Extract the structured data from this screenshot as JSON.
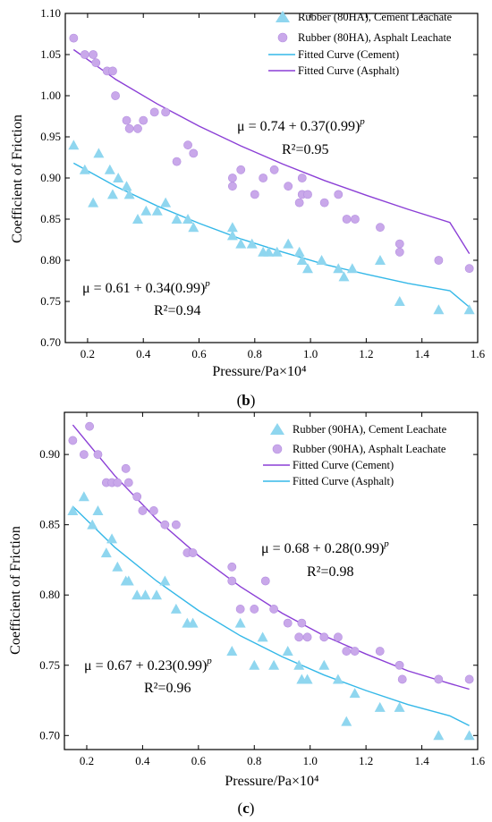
{
  "colors": {
    "cement": "#8fd6ef",
    "asphalt": "#c9a8ea",
    "cement_curve": "#35b8e8",
    "asphalt_curve": "#8b3fd6"
  },
  "panels": [
    {
      "label_pre": "(",
      "label_letter": "b",
      "label_post": ")",
      "equations": [
        {
          "text": "μ = 0.74 + 0.37(0.99)",
          "sup": "p",
          "r2": "R²=0.95"
        },
        {
          "text": "μ = 0.61 + 0.34(0.99)",
          "sup": "p",
          "r2": "R²=0.94"
        }
      ]
    },
    {
      "label_pre": "(",
      "label_letter": "c",
      "label_post": ")",
      "equations": [
        {
          "text": "μ = 0.68 + 0.28(0.99)",
          "sup": "p",
          "r2": "R²=0.98"
        },
        {
          "text": "μ = 0.67 + 0.23(0.99)",
          "sup": "p",
          "r2": "R²=0.96"
        }
      ]
    }
  ],
  "chart_data": [
    {
      "type": "scatter",
      "xlabel": "Pressure/Pa×10⁴",
      "ylabel": "Coefficient of Friction",
      "xlim": [
        0.12,
        1.6
      ],
      "ylim": [
        0.7,
        1.1
      ],
      "xticks": [
        "0.2",
        "0.4",
        "0.6",
        "0.8",
        "1.0",
        "1.2",
        "1.4",
        "1.6"
      ],
      "yticks": [
        "0.70",
        "0.75",
        "0.80",
        "0.85",
        "0.90",
        "0.95",
        "1.00",
        "1.05",
        "1.10"
      ],
      "legend_position": "top-right",
      "series": [
        {
          "name": "Rubber (80HA), Cement Leachate",
          "marker": "triangle",
          "points": [
            [
              0.15,
              0.94
            ],
            [
              0.19,
              0.91
            ],
            [
              0.22,
              0.87
            ],
            [
              0.24,
              0.93
            ],
            [
              0.28,
              0.91
            ],
            [
              0.29,
              0.88
            ],
            [
              0.31,
              0.9
            ],
            [
              0.34,
              0.89
            ],
            [
              0.35,
              0.88
            ],
            [
              0.38,
              0.85
            ],
            [
              0.41,
              0.86
            ],
            [
              0.45,
              0.86
            ],
            [
              0.48,
              0.87
            ],
            [
              0.52,
              0.85
            ],
            [
              0.56,
              0.85
            ],
            [
              0.58,
              0.84
            ],
            [
              0.72,
              0.84
            ],
            [
              0.72,
              0.83
            ],
            [
              0.75,
              0.82
            ],
            [
              0.79,
              0.82
            ],
            [
              0.83,
              0.81
            ],
            [
              0.85,
              0.81
            ],
            [
              0.88,
              0.81
            ],
            [
              0.92,
              0.82
            ],
            [
              0.96,
              0.81
            ],
            [
              0.97,
              0.8
            ],
            [
              0.99,
              0.79
            ],
            [
              1.04,
              0.8
            ],
            [
              1.1,
              0.79
            ],
            [
              1.12,
              0.78
            ],
            [
              1.15,
              0.79
            ],
            [
              1.25,
              0.8
            ],
            [
              1.32,
              0.75
            ],
            [
              1.46,
              0.74
            ],
            [
              1.57,
              0.74
            ]
          ]
        },
        {
          "name": "Rubber (80HA), Asphalt Leachate",
          "marker": "circle",
          "points": [
            [
              0.15,
              1.07
            ],
            [
              0.19,
              1.05
            ],
            [
              0.22,
              1.05
            ],
            [
              0.23,
              1.04
            ],
            [
              0.27,
              1.03
            ],
            [
              0.29,
              1.03
            ],
            [
              0.3,
              1.0
            ],
            [
              0.34,
              0.97
            ],
            [
              0.35,
              0.96
            ],
            [
              0.38,
              0.96
            ],
            [
              0.4,
              0.97
            ],
            [
              0.44,
              0.98
            ],
            [
              0.48,
              0.98
            ],
            [
              0.52,
              0.92
            ],
            [
              0.56,
              0.94
            ],
            [
              0.58,
              0.93
            ],
            [
              0.72,
              0.89
            ],
            [
              0.72,
              0.9
            ],
            [
              0.75,
              0.91
            ],
            [
              0.8,
              0.88
            ],
            [
              0.83,
              0.9
            ],
            [
              0.87,
              0.91
            ],
            [
              0.92,
              0.89
            ],
            [
              0.96,
              0.87
            ],
            [
              0.97,
              0.88
            ],
            [
              0.97,
              0.9
            ],
            [
              0.99,
              0.88
            ],
            [
              1.05,
              0.87
            ],
            [
              1.1,
              0.88
            ],
            [
              1.13,
              0.85
            ],
            [
              1.16,
              0.85
            ],
            [
              1.25,
              0.84
            ],
            [
              1.32,
              0.82
            ],
            [
              1.32,
              0.81
            ],
            [
              1.46,
              0.8
            ],
            [
              1.57,
              0.79
            ]
          ]
        },
        {
          "name": "Fitted Curve (Cement)",
          "type": "line",
          "x": [
            0.15,
            0.3,
            0.45,
            0.6,
            0.75,
            0.9,
            1.05,
            1.2,
            1.35,
            1.5,
            1.57
          ],
          "y": [
            0.918,
            0.89,
            0.866,
            0.845,
            0.826,
            0.81,
            0.795,
            0.783,
            0.772,
            0.763,
            0.743
          ]
        },
        {
          "name": "Fitted Curve (Asphalt)",
          "type": "line",
          "x": [
            0.15,
            0.3,
            0.45,
            0.6,
            0.75,
            0.9,
            1.05,
            1.2,
            1.35,
            1.5,
            1.57
          ],
          "y": [
            1.056,
            1.02,
            0.99,
            0.963,
            0.939,
            0.917,
            0.897,
            0.879,
            0.862,
            0.846,
            0.808
          ]
        }
      ]
    },
    {
      "type": "scatter",
      "xlabel": "Pressure/Pa×10⁴",
      "ylabel": "Coefficient of Friction",
      "xlim": [
        0.12,
        1.6
      ],
      "ylim": [
        0.69,
        0.93
      ],
      "xticks": [
        "0.2",
        "0.4",
        "0.6",
        "0.8",
        "1.0",
        "1.2",
        "1.4",
        "1.6"
      ],
      "yticks": [
        "0.70",
        "0.75",
        "0.80",
        "0.85",
        "0.90"
      ],
      "legend_position": "top-right",
      "series": [
        {
          "name": "Rubber (90HA), Cement Leachate",
          "marker": "triangle",
          "points": [
            [
              0.15,
              0.86
            ],
            [
              0.19,
              0.87
            ],
            [
              0.22,
              0.85
            ],
            [
              0.24,
              0.86
            ],
            [
              0.27,
              0.83
            ],
            [
              0.29,
              0.84
            ],
            [
              0.31,
              0.82
            ],
            [
              0.34,
              0.81
            ],
            [
              0.35,
              0.81
            ],
            [
              0.38,
              0.8
            ],
            [
              0.41,
              0.8
            ],
            [
              0.45,
              0.8
            ],
            [
              0.48,
              0.81
            ],
            [
              0.52,
              0.79
            ],
            [
              0.56,
              0.78
            ],
            [
              0.58,
              0.78
            ],
            [
              0.72,
              0.76
            ],
            [
              0.75,
              0.78
            ],
            [
              0.8,
              0.75
            ],
            [
              0.83,
              0.77
            ],
            [
              0.87,
              0.75
            ],
            [
              0.92,
              0.76
            ],
            [
              0.96,
              0.75
            ],
            [
              0.97,
              0.74
            ],
            [
              0.99,
              0.74
            ],
            [
              1.05,
              0.75
            ],
            [
              1.1,
              0.74
            ],
            [
              1.13,
              0.71
            ],
            [
              1.16,
              0.73
            ],
            [
              1.25,
              0.72
            ],
            [
              1.32,
              0.72
            ],
            [
              1.46,
              0.7
            ],
            [
              1.57,
              0.7
            ]
          ]
        },
        {
          "name": "Rubber (90HA), Asphalt Leachate",
          "marker": "circle",
          "points": [
            [
              0.15,
              0.91
            ],
            [
              0.19,
              0.9
            ],
            [
              0.21,
              0.92
            ],
            [
              0.24,
              0.9
            ],
            [
              0.27,
              0.88
            ],
            [
              0.29,
              0.88
            ],
            [
              0.31,
              0.88
            ],
            [
              0.34,
              0.89
            ],
            [
              0.35,
              0.88
            ],
            [
              0.38,
              0.87
            ],
            [
              0.4,
              0.86
            ],
            [
              0.44,
              0.86
            ],
            [
              0.48,
              0.85
            ],
            [
              0.52,
              0.85
            ],
            [
              0.56,
              0.83
            ],
            [
              0.58,
              0.83
            ],
            [
              0.72,
              0.82
            ],
            [
              0.72,
              0.81
            ],
            [
              0.75,
              0.79
            ],
            [
              0.8,
              0.79
            ],
            [
              0.84,
              0.81
            ],
            [
              0.87,
              0.79
            ],
            [
              0.92,
              0.78
            ],
            [
              0.96,
              0.77
            ],
            [
              0.97,
              0.78
            ],
            [
              0.99,
              0.77
            ],
            [
              1.05,
              0.77
            ],
            [
              1.1,
              0.77
            ],
            [
              1.13,
              0.76
            ],
            [
              1.16,
              0.76
            ],
            [
              1.25,
              0.76
            ],
            [
              1.32,
              0.75
            ],
            [
              1.33,
              0.74
            ],
            [
              1.46,
              0.74
            ],
            [
              1.57,
              0.74
            ]
          ]
        },
        {
          "name": "Fitted Curve (Cement)",
          "type": "line",
          "x": [
            0.15,
            0.3,
            0.45,
            0.6,
            0.75,
            0.9,
            1.05,
            1.2,
            1.35,
            1.5,
            1.57
          ],
          "y": [
            0.921,
            0.885,
            0.854,
            0.828,
            0.806,
            0.787,
            0.771,
            0.758,
            0.746,
            0.737,
            0.733
          ]
        },
        {
          "name": "Fitted Curve (Asphalt)",
          "type": "line",
          "x": [
            0.15,
            0.3,
            0.45,
            0.6,
            0.75,
            0.9,
            1.05,
            1.2,
            1.35,
            1.5,
            1.57
          ],
          "y": [
            0.863,
            0.834,
            0.81,
            0.789,
            0.771,
            0.756,
            0.743,
            0.732,
            0.722,
            0.714,
            0.707
          ]
        }
      ]
    }
  ]
}
